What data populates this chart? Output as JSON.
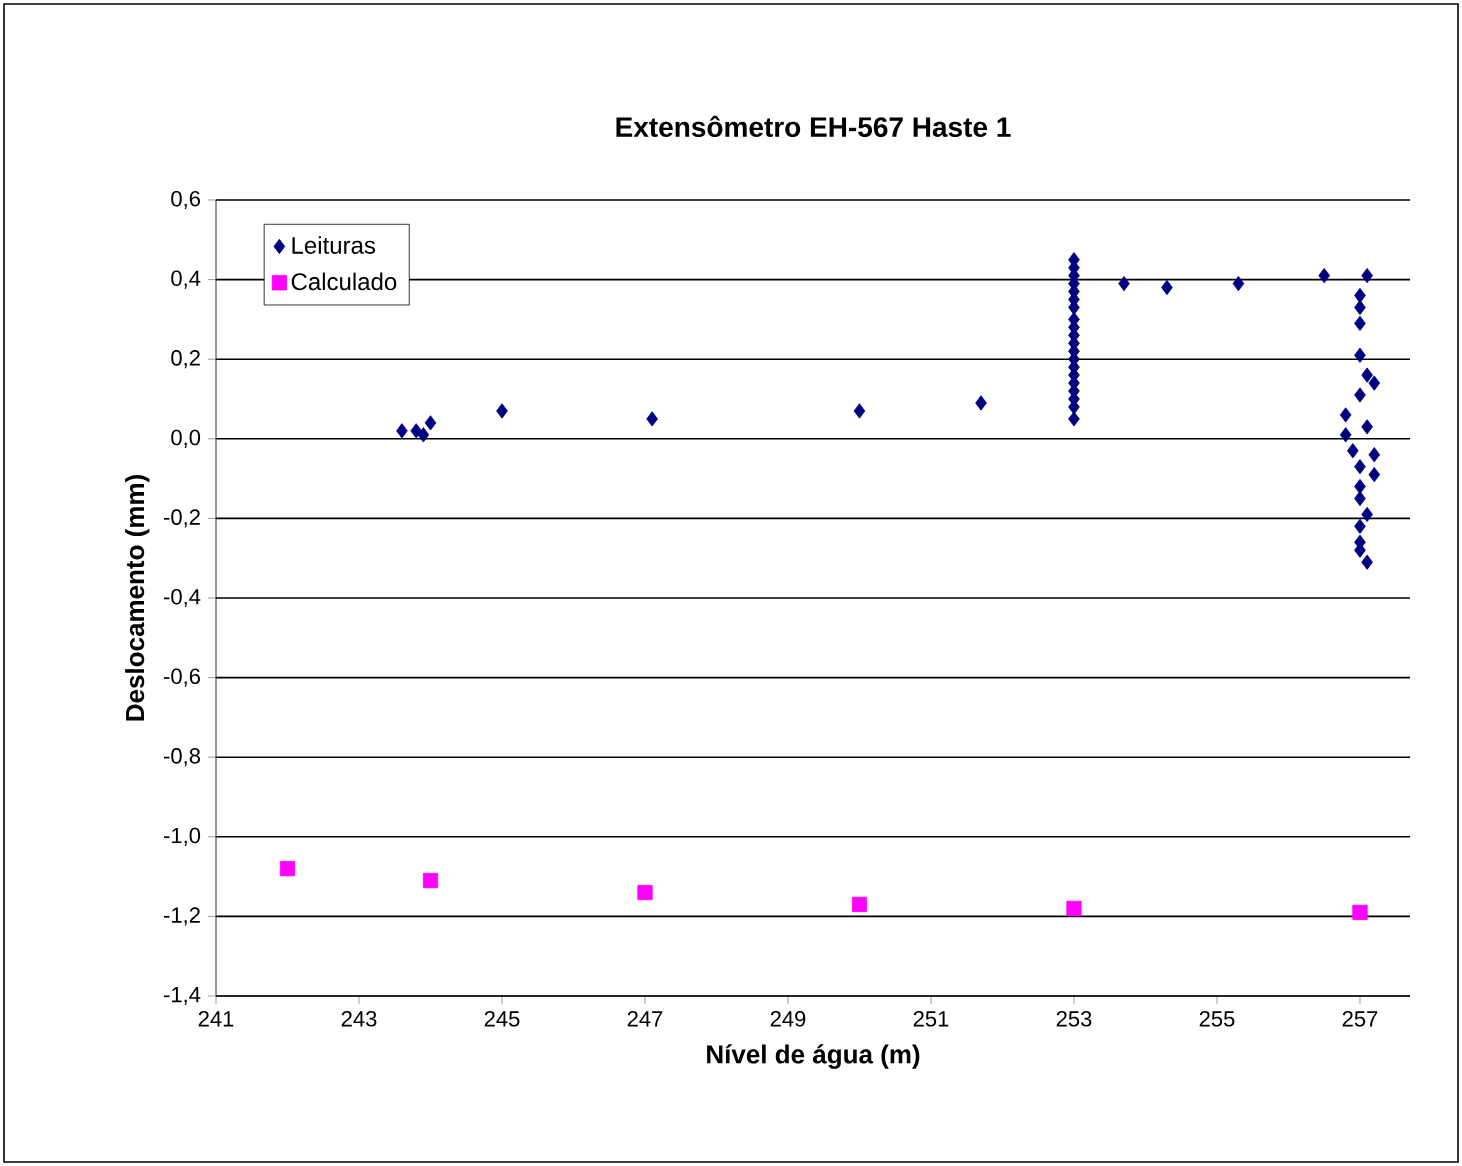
{
  "chart_data": {
    "type": "scatter",
    "title": "Extensômetro EH-567 Haste 1",
    "xlabel": "Nível de água (m)",
    "ylabel": "Deslocamento (mm)",
    "xlim": [
      241,
      257.7
    ],
    "xticks": [
      241,
      243,
      245,
      247,
      249,
      251,
      253,
      255,
      257
    ],
    "ylim": [
      -1.4,
      0.6
    ],
    "yticks": [
      {
        "value": -1.4,
        "label": "-1,4"
      },
      {
        "value": -1.2,
        "label": "-1,2"
      },
      {
        "value": -1.0,
        "label": "-1,0"
      },
      {
        "value": -0.8,
        "label": "-0,8"
      },
      {
        "value": -0.6,
        "label": "-0,6"
      },
      {
        "value": -0.4,
        "label": "-0,4"
      },
      {
        "value": -0.2,
        "label": "-0,2"
      },
      {
        "value": 0.0,
        "label": "0,0"
      },
      {
        "value": 0.2,
        "label": "0,2"
      },
      {
        "value": 0.4,
        "label": "0,4"
      },
      {
        "value": 0.6,
        "label": "0,6"
      }
    ],
    "grid": "y",
    "legend": "top left",
    "series": [
      {
        "name": "Leituras",
        "color": "#000080",
        "marker": "diamond",
        "x": [
          243.6,
          243.8,
          243.9,
          244.0,
          245.0,
          247.1,
          250.0,
          251.7,
          253.0,
          253.0,
          253.0,
          253.0,
          253.0,
          253.0,
          253.0,
          253.0,
          253.0,
          253.0,
          253.0,
          253.0,
          253.0,
          253.0,
          253.0,
          253.0,
          253.0,
          253.0,
          253.0,
          253.0,
          253.7,
          254.3,
          255.3,
          256.5,
          257.1,
          257.0,
          257.0,
          257.0,
          257.0,
          257.1,
          257.2,
          257.0,
          256.8,
          256.8,
          257.1,
          256.9,
          257.2,
          257.0,
          257.2,
          257.0,
          257.0,
          257.1,
          257.0,
          257.0,
          257.0,
          257.1
        ],
        "values": [
          0.02,
          0.02,
          0.01,
          0.04,
          0.07,
          0.05,
          0.07,
          0.09,
          0.45,
          0.43,
          0.41,
          0.39,
          0.37,
          0.35,
          0.33,
          0.3,
          0.28,
          0.26,
          0.24,
          0.22,
          0.2,
          0.18,
          0.16,
          0.14,
          0.12,
          0.1,
          0.08,
          0.05,
          0.39,
          0.38,
          0.39,
          0.41,
          0.41,
          0.36,
          0.33,
          0.29,
          0.21,
          0.16,
          0.14,
          0.11,
          0.06,
          0.01,
          0.03,
          -0.03,
          -0.04,
          -0.07,
          -0.09,
          -0.12,
          -0.15,
          -0.19,
          -0.22,
          -0.26,
          -0.28,
          -0.31
        ]
      },
      {
        "name": "Calculado",
        "color": "#ff00ff",
        "marker": "square",
        "x": [
          242,
          244,
          247,
          250,
          253,
          257
        ],
        "values": [
          -1.08,
          -1.11,
          -1.14,
          -1.17,
          -1.18,
          -1.19
        ]
      }
    ]
  }
}
